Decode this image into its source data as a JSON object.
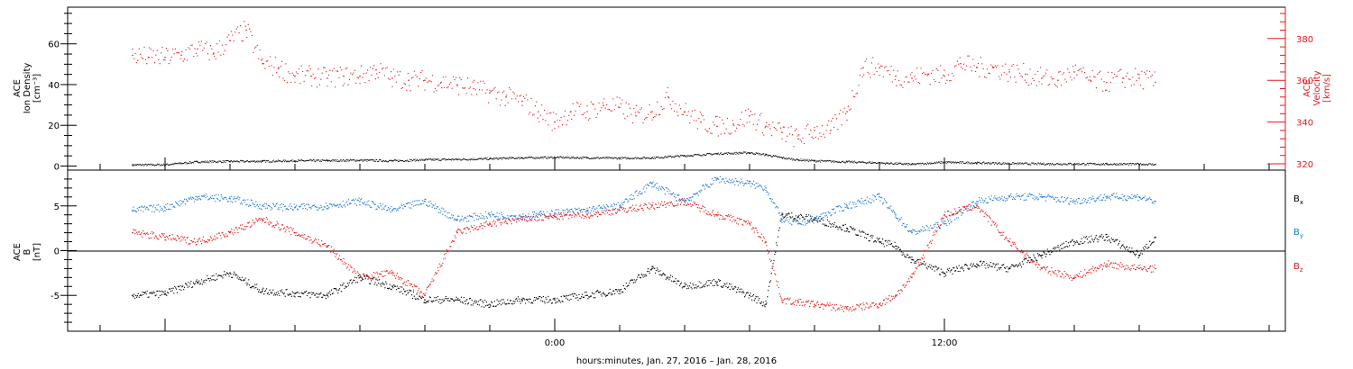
{
  "chart_data": [
    {
      "type": "scatter",
      "panel": "top",
      "ylabel_left": [
        "ACE",
        "Ion Density",
        "[cm⁻³]"
      ],
      "ylabel_right": [
        "ACE",
        "Velocity",
        "[km/s]"
      ],
      "yticks_left": [
        0,
        20,
        40,
        60
      ],
      "ylim_left": [
        -2,
        78
      ],
      "yticks_right": [
        320,
        340,
        360,
        380
      ],
      "ylim_right": [
        317,
        395
      ],
      "series": [
        {
          "axis": "left",
          "color": "#000000",
          "x": [
            -13.0,
            -12.0,
            -11.0,
            -10.0,
            -9.0,
            -8.0,
            -7.0,
            -6.0,
            -5.0,
            -4.0,
            -3.0,
            -2.0,
            -1.0,
            0.0,
            1.0,
            2.0,
            3.0,
            4.0,
            5.0,
            6.0,
            6.5,
            7.0,
            7.5,
            8.0,
            9.0,
            10.0,
            11.0,
            12.0,
            13.0,
            14.0,
            15.0,
            16.0,
            17.0,
            18.0,
            18.5
          ],
          "values": [
            0.5,
            0.6,
            2.0,
            2.2,
            2.3,
            2.5,
            2.6,
            2.8,
            2.5,
            3.0,
            3.2,
            3.5,
            4.0,
            4.2,
            4.0,
            3.8,
            4.0,
            5.0,
            6.0,
            6.5,
            5.5,
            4.0,
            3.0,
            2.5,
            2.0,
            1.5,
            0.8,
            1.8,
            1.5,
            1.2,
            1.0,
            1.0,
            0.9,
            0.9,
            0.8
          ]
        },
        {
          "axis": "right",
          "color": "#e31a1c",
          "x": [
            -13.0,
            -12.5,
            -12.0,
            -11.5,
            -11.0,
            -10.5,
            -10.0,
            -9.5,
            -9.0,
            -8.5,
            -8.0,
            -7.5,
            -7.0,
            -6.5,
            -6.0,
            -5.5,
            -5.0,
            -4.5,
            -4.0,
            -3.5,
            -3.0,
            -2.5,
            -2.0,
            -1.5,
            -1.0,
            -0.5,
            0.0,
            0.5,
            1.0,
            1.5,
            2.0,
            2.5,
            3.0,
            3.5,
            4.0,
            4.5,
            5.0,
            5.5,
            6.0,
            6.5,
            7.0,
            7.5,
            8.0,
            8.5,
            9.0,
            9.5,
            10.0,
            10.5,
            11.0,
            11.5,
            12.0,
            12.5,
            13.0,
            13.5,
            14.0,
            14.5,
            15.0,
            15.5,
            16.0,
            16.5,
            17.0,
            17.5,
            18.0,
            18.5
          ],
          "values": [
            372,
            371,
            371,
            372,
            375,
            373,
            379,
            384,
            368,
            366,
            362,
            362,
            361,
            362,
            362,
            365,
            361,
            360,
            360,
            359,
            358,
            356,
            354,
            352,
            350,
            345,
            340,
            345,
            345,
            348,
            347,
            343,
            345,
            352,
            345,
            340,
            338,
            339,
            343,
            338,
            335,
            332,
            336,
            336,
            345,
            366,
            366,
            362,
            361,
            363,
            362,
            368,
            366,
            366,
            364,
            363,
            361,
            360,
            364,
            360,
            359,
            361,
            361,
            359
          ]
        }
      ]
    },
    {
      "type": "scatter",
      "panel": "bottom",
      "ylabel_left": [
        "ACE",
        "B",
        "[nT]"
      ],
      "yticks_left": [
        -5,
        0,
        5
      ],
      "ylim_left": [
        -9,
        9
      ],
      "legend": [
        "Bx",
        "By",
        "Bz"
      ],
      "legend_placement": "right",
      "zero_line": true,
      "series": [
        {
          "name": "Bx",
          "color": "#000000",
          "x": [
            -13.0,
            -12.0,
            -11.0,
            -10.0,
            -9.0,
            -8.0,
            -7.0,
            -6.0,
            -5.0,
            -4.0,
            -3.0,
            -2.0,
            -1.0,
            0.0,
            1.0,
            2.0,
            3.0,
            4.0,
            5.0,
            6.0,
            6.5,
            7.0,
            7.5,
            8.0,
            9.0,
            10.0,
            10.5,
            11.0,
            12.0,
            13.0,
            14.0,
            15.0,
            16.0,
            17.0,
            18.0,
            18.5
          ],
          "values": [
            -5.0,
            -4.8,
            -3.5,
            -2.5,
            -4.5,
            -4.8,
            -5.0,
            -3.0,
            -4.0,
            -5.5,
            -5.5,
            -6.0,
            -5.5,
            -5.5,
            -5.0,
            -4.5,
            -2.0,
            -4.0,
            -3.5,
            -5.0,
            -6.0,
            4.0,
            3.8,
            3.5,
            2.5,
            1.0,
            0.5,
            -1.0,
            -2.5,
            -1.5,
            -2.0,
            -0.5,
            1.0,
            1.5,
            -0.5,
            1.5
          ]
        },
        {
          "name": "By",
          "color": "#1f78d1",
          "x": [
            -13.0,
            -12.0,
            -11.0,
            -10.0,
            -9.0,
            -8.0,
            -7.0,
            -6.0,
            -5.0,
            -4.0,
            -3.0,
            -2.0,
            -1.0,
            0.0,
            1.0,
            2.0,
            3.0,
            4.0,
            5.0,
            6.0,
            6.5,
            7.0,
            7.5,
            8.0,
            9.0,
            10.0,
            10.5,
            11.0,
            12.0,
            13.0,
            14.0,
            15.0,
            16.0,
            17.0,
            18.0,
            18.5
          ],
          "values": [
            4.5,
            4.8,
            6.0,
            5.8,
            5.0,
            4.8,
            5.0,
            5.5,
            4.5,
            5.5,
            3.5,
            4.0,
            3.8,
            4.2,
            4.5,
            5.0,
            7.5,
            5.5,
            8.0,
            7.5,
            7.0,
            3.5,
            3.0,
            3.5,
            5.0,
            6.0,
            4.0,
            2.0,
            3.0,
            5.5,
            6.0,
            6.0,
            5.5,
            6.0,
            6.0,
            5.5
          ]
        },
        {
          "name": "Bz",
          "color": "#e31a1c",
          "x": [
            -13.0,
            -12.0,
            -11.0,
            -10.0,
            -9.0,
            -8.0,
            -7.0,
            -6.0,
            -5.0,
            -4.0,
            -3.0,
            -2.0,
            -1.0,
            0.0,
            1.0,
            2.0,
            3.0,
            4.0,
            5.0,
            6.0,
            6.5,
            7.0,
            7.5,
            8.0,
            9.0,
            10.0,
            10.5,
            11.0,
            12.0,
            13.0,
            14.0,
            15.0,
            16.0,
            17.0,
            18.0,
            18.5
          ],
          "values": [
            2.0,
            1.5,
            1.0,
            2.0,
            3.5,
            2.0,
            0.5,
            -3.0,
            -2.5,
            -5.0,
            2.0,
            3.0,
            3.5,
            3.8,
            4.0,
            4.5,
            5.0,
            5.5,
            4.0,
            3.0,
            1.0,
            -5.5,
            -5.8,
            -6.0,
            -6.5,
            -6.0,
            -5.0,
            -3.0,
            4.0,
            5.0,
            1.0,
            -2.0,
            -3.0,
            -1.5,
            -2.0,
            -2.0
          ]
        }
      ]
    }
  ],
  "x_axis": {
    "xlim": [
      -15,
      22.5
    ],
    "tick_labels": [
      {
        "x": 0,
        "label": "0:00"
      },
      {
        "x": 12,
        "label": "12:00"
      }
    ],
    "title": "hours:minutes, Jan. 27, 2016 – Jan. 28, 2016"
  },
  "legend_labels": {
    "bx": "B",
    "bx_sub": "x",
    "by": "B",
    "by_sub": "y",
    "bz": "B",
    "bz_sub": "z"
  },
  "colors": {
    "density": "#000000",
    "velocity": "#e31a1c",
    "bx": "#000000",
    "by": "#1f78d1",
    "bz": "#e31a1c"
  }
}
